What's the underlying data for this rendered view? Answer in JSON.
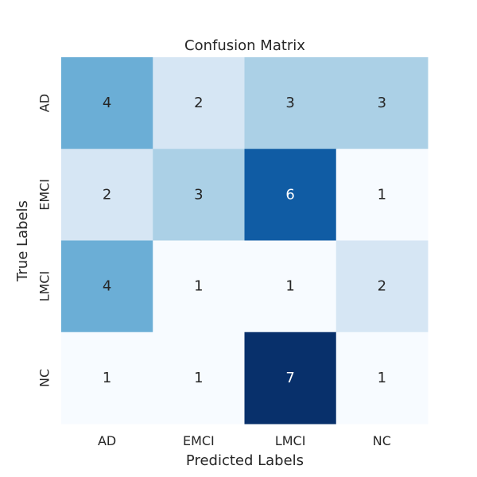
{
  "chart_data": {
    "type": "heatmap",
    "title": "Confusion Matrix",
    "xlabel": "Predicted Labels",
    "ylabel": "True Labels",
    "x_categories": [
      "AD",
      "EMCI",
      "LMCI",
      "NC"
    ],
    "y_categories": [
      "AD",
      "EMCI",
      "LMCI",
      "NC"
    ],
    "values": [
      [
        4,
        2,
        3,
        3
      ],
      [
        2,
        3,
        6,
        1
      ],
      [
        4,
        1,
        1,
        2
      ],
      [
        1,
        1,
        7,
        1
      ]
    ],
    "value_range": [
      1,
      7
    ],
    "colormap": "Blues",
    "grid": false,
    "legend": "none"
  }
}
